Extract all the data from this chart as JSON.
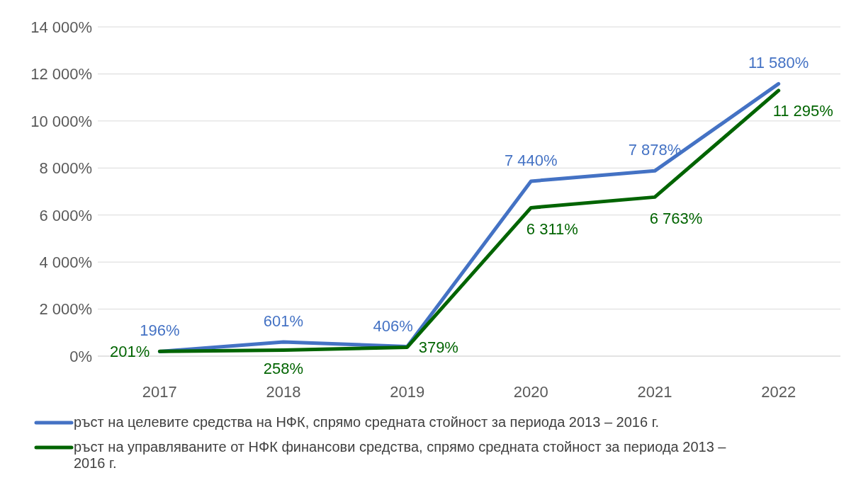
{
  "chart_data": {
    "type": "line",
    "categories": [
      "2017",
      "2018",
      "2019",
      "2020",
      "2021",
      "2022"
    ],
    "series": [
      {
        "name": "ръст на целевите средства на НФК, спрямо средната стойност за периода 2013 – 2016 г.",
        "color": "#4472c4",
        "values": [
          196,
          601,
          406,
          7440,
          7878,
          11580
        ],
        "value_labels": [
          "196%",
          "601%",
          "406%",
          "7 440%",
          "7 878%",
          "11 580%"
        ]
      },
      {
        "name": "ръст на управляваните от НФК финансови средства, спрямо средната стойност за периода 2013 – 2016 г.",
        "color": "#006400",
        "values": [
          201,
          258,
          379,
          6311,
          6763,
          11295
        ],
        "value_labels": [
          "201%",
          "258%",
          "379%",
          "6 311%",
          "6 763%",
          "11 295%"
        ]
      }
    ],
    "ylim": [
      0,
      14000
    ],
    "yticks": [
      {
        "value": 0,
        "label": "0%"
      },
      {
        "value": 2000,
        "label": "2 000%"
      },
      {
        "value": 4000,
        "label": "4 000%"
      },
      {
        "value": 6000,
        "label": "6 000%"
      },
      {
        "value": 8000,
        "label": "8 000%"
      },
      {
        "value": 10000,
        "label": "10 000%"
      },
      {
        "value": 12000,
        "label": "12 000%"
      },
      {
        "value": 14000,
        "label": "14 000%"
      }
    ],
    "grid": "y",
    "legend": "bottom",
    "marker": "none",
    "line_style": "solid"
  }
}
